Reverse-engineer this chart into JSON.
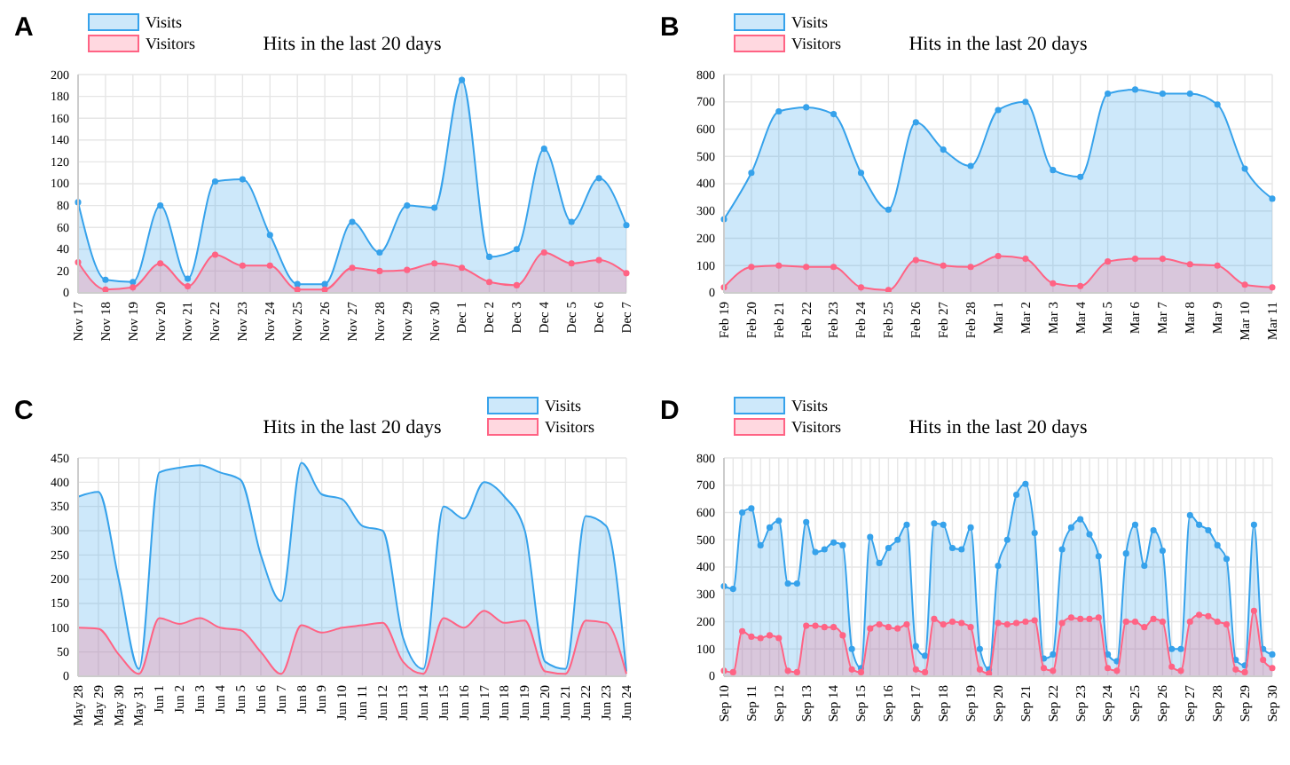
{
  "chart_data": [
    {
      "type": "area",
      "title": "Hits in the last 20 days",
      "annotations": [
        "A"
      ],
      "categories": [
        "Nov 17",
        "Nov 18",
        "Nov 19",
        "Nov 20",
        "Nov 21",
        "Nov 22",
        "Nov 23",
        "Nov 24",
        "Nov 25",
        "Nov 26",
        "Nov 27",
        "Nov 28",
        "Nov 29",
        "Nov 30",
        "Dec 1",
        "Dec 2",
        "Dec 3",
        "Dec 4",
        "Dec 5",
        "Dec 6",
        "Dec 7"
      ],
      "series": [
        {
          "name": "Visits",
          "color": "#36a2eb",
          "values": [
            83,
            12,
            10,
            80,
            13,
            102,
            104,
            53,
            8,
            8,
            65,
            37,
            80,
            78,
            195,
            33,
            40,
            132,
            65,
            105,
            62
          ]
        },
        {
          "name": "Visitors",
          "color": "#ff6384",
          "values": [
            28,
            3,
            5,
            27,
            6,
            35,
            25,
            25,
            3,
            3,
            23,
            20,
            21,
            27,
            23,
            10,
            7,
            37,
            27,
            30,
            18
          ]
        }
      ],
      "ylim": [
        0,
        200
      ],
      "yticks": [
        0,
        20,
        40,
        60,
        80,
        100,
        120,
        140,
        160,
        180,
        200
      ],
      "grid": true,
      "legend": "top left",
      "marker": "circle"
    },
    {
      "type": "area",
      "title": "Hits in the last 20 days",
      "annotations": [
        "B"
      ],
      "categories": [
        "Feb 19",
        "Feb 20",
        "Feb 21",
        "Feb 22",
        "Feb 23",
        "Feb 24",
        "Feb 25",
        "Feb 26",
        "Feb 27",
        "Feb 28",
        "Mar 1",
        "Mar 2",
        "Mar 3",
        "Mar 4",
        "Mar 5",
        "Mar 6",
        "Mar 7",
        "Mar 8",
        "Mar 9",
        "Mar 10",
        "Mar 11"
      ],
      "series": [
        {
          "name": "Visits",
          "color": "#36a2eb",
          "values": [
            270,
            440,
            665,
            680,
            655,
            440,
            305,
            625,
            525,
            465,
            670,
            700,
            450,
            425,
            730,
            745,
            730,
            730,
            690,
            455,
            345
          ]
        },
        {
          "name": "Visitors",
          "color": "#ff6384",
          "values": [
            20,
            95,
            100,
            95,
            95,
            20,
            10,
            120,
            100,
            95,
            135,
            125,
            35,
            25,
            115,
            125,
            125,
            105,
            100,
            30,
            20
          ]
        }
      ],
      "ylim": [
        0,
        800
      ],
      "yticks": [
        0,
        100,
        200,
        300,
        400,
        500,
        600,
        700,
        800
      ],
      "grid": true,
      "legend": "top left",
      "marker": "circle"
    },
    {
      "type": "area",
      "title": "Hits in the last 20 days",
      "annotations": [
        "C"
      ],
      "categories": [
        "May 28",
        "May 29",
        "May 30",
        "May 31",
        "Jun 1",
        "Jun 2",
        "Jun 3",
        "Jun 4",
        "Jun 5",
        "Jun 6",
        "Jun 7",
        "Jun 8",
        "Jun 9",
        "Jun 10",
        "Jun 11",
        "Jun 12",
        "Jun 13",
        "Jun 14",
        "Jun 15",
        "Jun 16",
        "Jun 17",
        "Jun 18",
        "Jun 19",
        "Jun 20",
        "Jun 21",
        "Jun 22",
        "Jun 23",
        "Jun 24"
      ],
      "series": [
        {
          "name": "Visits",
          "color": "#36a2eb",
          "values": [
            370,
            380,
            200,
            15,
            420,
            430,
            435,
            420,
            405,
            250,
            155,
            440,
            375,
            365,
            310,
            300,
            80,
            15,
            350,
            325,
            400,
            370,
            300,
            30,
            15,
            330,
            310,
            10
          ]
        },
        {
          "name": "Visitors",
          "color": "#ff6384",
          "values": [
            100,
            98,
            45,
            5,
            120,
            108,
            120,
            100,
            95,
            50,
            5,
            105,
            90,
            100,
            105,
            110,
            30,
            5,
            120,
            100,
            135,
            110,
            115,
            10,
            5,
            115,
            110,
            5
          ]
        }
      ],
      "ylim": [
        0,
        450
      ],
      "yticks": [
        0,
        50,
        100,
        150,
        200,
        250,
        300,
        350,
        400,
        450
      ],
      "grid": true,
      "legend": "top right",
      "marker": "none"
    },
    {
      "type": "area",
      "title": "Hits in the last 20 days",
      "annotations": [
        "D"
      ],
      "categories": [
        "Sep 10",
        null,
        null,
        "Sep 11",
        null,
        null,
        "Sep 12",
        null,
        null,
        "Sep 13",
        null,
        null,
        "Sep 14",
        null,
        null,
        "Sep 15",
        null,
        null,
        "Sep 16",
        null,
        null,
        "Sep 17",
        null,
        null,
        "Sep 18",
        null,
        null,
        "Sep 19",
        null,
        null,
        "Sep 20",
        null,
        null,
        "Sep 21",
        null,
        null,
        "Sep 22",
        null,
        null,
        "Sep 23",
        null,
        null,
        "Sep 24",
        null,
        null,
        "Sep 25",
        null,
        null,
        "Sep 26",
        null,
        null,
        "Sep 27",
        null,
        null,
        "Sep 28",
        null,
        null,
        "Sep 29",
        null,
        null,
        "Sep 30"
      ],
      "series": [
        {
          "name": "Visits",
          "color": "#36a2eb",
          "values": [
            330,
            320,
            600,
            615,
            480,
            545,
            570,
            340,
            340,
            565,
            455,
            465,
            490,
            480,
            100,
            30,
            510,
            415,
            470,
            500,
            555,
            110,
            75,
            560,
            555,
            470,
            465,
            545,
            100,
            25,
            405,
            500,
            665,
            705,
            525,
            65,
            80,
            465,
            545,
            575,
            520,
            440,
            80,
            55,
            450,
            555,
            405,
            535,
            460,
            100,
            100,
            590,
            555,
            535,
            480,
            430,
            60,
            40,
            555,
            100,
            80
          ]
        },
        {
          "name": "Visitors",
          "color": "#ff6384",
          "values": [
            20,
            15,
            165,
            145,
            140,
            150,
            140,
            20,
            15,
            185,
            185,
            180,
            180,
            150,
            25,
            15,
            175,
            190,
            180,
            175,
            190,
            25,
            15,
            210,
            190,
            200,
            195,
            180,
            25,
            10,
            195,
            190,
            195,
            200,
            205,
            30,
            20,
            195,
            215,
            210,
            210,
            215,
            30,
            20,
            200,
            200,
            180,
            210,
            200,
            35,
            20,
            200,
            225,
            220,
            200,
            190,
            25,
            15,
            240,
            60,
            30
          ]
        }
      ],
      "ylim": [
        0,
        800
      ],
      "yticks": [
        0,
        100,
        200,
        300,
        400,
        500,
        600,
        700,
        800
      ],
      "grid": true,
      "legend": "top left",
      "marker": "circle"
    }
  ]
}
